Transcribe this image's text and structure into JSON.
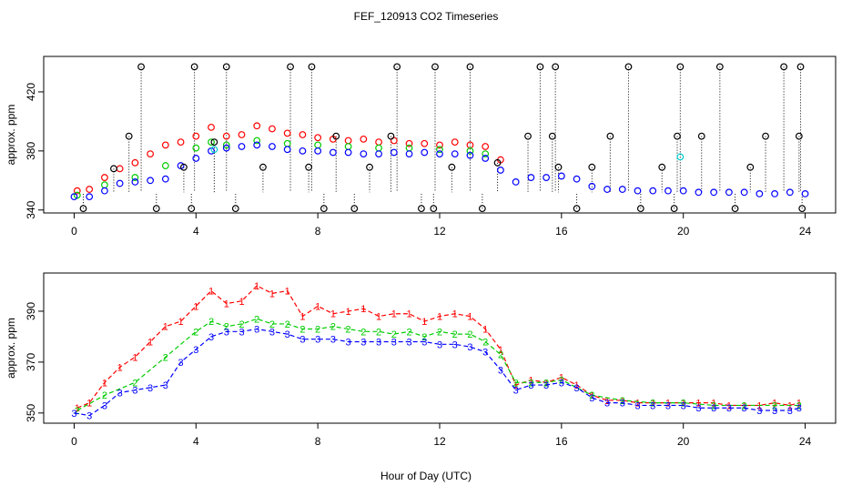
{
  "figure": {
    "title": "FEF_120913  CO2 Timeseries",
    "xlabel": "Hour of Day (UTC)"
  },
  "chart_data": [
    {
      "type": "scatter",
      "panel": "top",
      "title": "",
      "xlabel": "",
      "ylabel": "approx. ppm",
      "xlim": [
        -1,
        25
      ],
      "ylim": [
        338,
        444
      ],
      "xticks": [
        "0",
        "4",
        "8",
        "12",
        "16",
        "20",
        "24"
      ],
      "xtick_values": [
        0,
        4,
        8,
        12,
        16,
        20,
        24
      ],
      "yticks": [
        "340",
        "380",
        "420"
      ],
      "ytick_values": [
        340,
        380,
        420
      ],
      "marker": "circle",
      "grid": false,
      "legend": "none",
      "colors": {
        "red": "#ff0000",
        "green": "#00cc00",
        "blue": "#0000ff",
        "black": "#000000",
        "cyan": "#00cccc"
      },
      "series_red_x": [
        0.1,
        0.5,
        1.0,
        1.5,
        2.0,
        2.5,
        3.0,
        3.5,
        4.0,
        4.5,
        5.0,
        5.5,
        6.0,
        6.5,
        7.0,
        7.5,
        8.0,
        8.5,
        9.0,
        9.5,
        10.0,
        10.5,
        11.0,
        11.5,
        12.0,
        12.5,
        13.0,
        13.5,
        14.0
      ],
      "series_red_y": [
        353,
        354,
        362,
        368,
        372,
        378,
        384,
        386,
        390,
        396,
        390,
        391,
        397,
        395,
        392,
        391,
        389,
        388,
        387,
        388,
        386,
        387,
        385,
        385,
        384,
        386,
        384,
        383,
        374
      ],
      "series_green_x": [
        0.1,
        1.0,
        2.0,
        3.0,
        4.0,
        4.5,
        5.0,
        6.0,
        7.0,
        8.0,
        9.0,
        10.0,
        11.0,
        12.0,
        13.0,
        13.5
      ],
      "series_green_y": [
        350,
        357,
        362,
        370,
        382,
        386,
        384,
        387,
        385,
        384,
        383,
        382,
        382,
        381,
        380,
        378
      ],
      "series_blue_x": [
        0.0,
        0.5,
        1.0,
        1.5,
        2.0,
        2.5,
        3.0,
        3.5,
        4.0,
        4.5,
        5.0,
        5.5,
        6.0,
        6.5,
        7.0,
        7.5,
        8.0,
        8.5,
        9.0,
        9.5,
        10.0,
        10.5,
        11.0,
        11.5,
        12.0,
        12.5,
        13.0,
        13.5,
        14.0,
        14.5,
        15.0,
        15.5,
        16.0,
        16.5,
        17.0,
        17.5,
        18.0,
        18.5,
        19.0,
        19.5,
        20.0,
        20.5,
        21.0,
        21.5,
        22.0,
        22.5,
        23.0,
        23.5,
        24.0
      ],
      "series_blue_y": [
        349,
        349,
        353,
        358,
        359,
        360,
        361,
        370,
        375,
        380,
        382,
        383,
        384,
        383,
        381,
        380,
        380,
        379,
        379,
        378,
        378,
        379,
        378,
        379,
        378,
        378,
        377,
        375,
        367,
        359,
        362,
        362,
        363,
        361,
        356,
        354,
        354,
        353,
        353,
        353,
        353,
        352,
        352,
        352,
        352,
        351,
        351,
        352,
        351
      ],
      "series_black_x": [
        0.3,
        1.3,
        1.8,
        2.2,
        2.7,
        3.6,
        3.85,
        3.95,
        4.6,
        5.0,
        5.3,
        6.2,
        7.1,
        7.7,
        7.8,
        8.2,
        8.6,
        9.2,
        9.7,
        10.4,
        10.6,
        11.4,
        11.8,
        11.85,
        12.4,
        13.0,
        13.4,
        13.9,
        14.9,
        15.3,
        15.7,
        15.8,
        15.9,
        16.5,
        17.0,
        17.6,
        18.2,
        18.6,
        19.3,
        19.7,
        19.8,
        19.9,
        20.6,
        21.2,
        21.7,
        22.2,
        22.7,
        23.3,
        23.8,
        23.85,
        23.9
      ],
      "series_black_y": [
        341,
        368,
        390,
        437,
        341,
        369,
        341,
        437,
        386,
        437,
        341,
        369,
        437,
        369,
        437,
        341,
        390,
        341,
        369,
        390,
        437,
        341,
        341,
        437,
        369,
        437,
        341,
        372,
        390,
        437,
        390,
        437,
        369,
        341,
        369,
        390,
        437,
        341,
        369,
        341,
        390,
        437,
        390,
        437,
        341,
        369,
        390,
        437,
        390,
        437,
        341
      ],
      "series_cyan_x": [
        4.6,
        19.9
      ],
      "series_cyan_y": [
        381,
        376
      ]
    },
    {
      "type": "line",
      "panel": "bottom",
      "title": "",
      "xlabel": "Hour of Day (UTC)",
      "ylabel": "approx. ppm",
      "xlim": [
        -1,
        25
      ],
      "ylim": [
        346,
        405
      ],
      "xticks": [
        "0",
        "4",
        "8",
        "12",
        "16",
        "20",
        "24"
      ],
      "xtick_values": [
        0,
        4,
        8,
        12,
        16,
        20,
        24
      ],
      "yticks": [
        "350",
        "370",
        "390"
      ],
      "ytick_values": [
        350,
        370,
        390
      ],
      "grid": false,
      "legend": "none",
      "line_style": "dashed with numeric markers",
      "series": [
        {
          "marker": "1",
          "color": "#ff0000",
          "x": [
            0.1,
            0.5,
            1.0,
            1.5,
            2.0,
            2.5,
            3.0,
            3.5,
            4.0,
            4.5,
            5.0,
            5.5,
            6.0,
            6.5,
            7.0,
            7.5,
            8.0,
            8.5,
            9.0,
            9.5,
            10.0,
            10.5,
            11.0,
            11.5,
            12.0,
            12.5,
            13.0,
            13.5,
            14.0,
            14.5,
            15.0,
            15.5,
            16.0,
            16.5,
            17.0,
            17.5,
            18.0,
            18.5,
            19.0,
            19.5,
            20.0,
            20.5,
            21.0,
            21.5,
            22.0,
            22.5,
            23.0,
            23.5,
            23.8
          ],
          "y": [
            352,
            354,
            362,
            368,
            372,
            378,
            384,
            386,
            392,
            398,
            393,
            394,
            400,
            397,
            398,
            388,
            392,
            389,
            390,
            391,
            388,
            389,
            389,
            386,
            388,
            389,
            388,
            383,
            375,
            361,
            363,
            362,
            364,
            361,
            357,
            355,
            355,
            354,
            354,
            354,
            354,
            354,
            354,
            353,
            353,
            353,
            354,
            353,
            354
          ]
        },
        {
          "marker": "2",
          "color": "#00cc00",
          "x": [
            0.1,
            1.0,
            2.0,
            3.0,
            4.0,
            4.5,
            5.0,
            5.5,
            6.0,
            6.5,
            7.0,
            7.5,
            8.0,
            8.5,
            9.0,
            9.5,
            10.0,
            10.5,
            11.0,
            11.5,
            12.0,
            12.5,
            13.0,
            13.5,
            14.0,
            14.5,
            15.0,
            15.5,
            16.0,
            17.0,
            18.0,
            19.0,
            20.0,
            21.0,
            22.0,
            23.0,
            23.8
          ],
          "y": [
            351,
            357,
            362,
            372,
            382,
            386,
            384,
            385,
            387,
            385,
            385,
            383,
            383,
            384,
            383,
            382,
            382,
            381,
            382,
            380,
            382,
            381,
            381,
            378,
            373,
            362,
            362,
            362,
            363,
            357,
            355,
            354,
            354,
            353,
            353,
            353,
            353
          ]
        },
        {
          "marker": "3",
          "color": "#0000ff",
          "x": [
            0.0,
            0.5,
            1.0,
            1.5,
            2.0,
            2.5,
            3.0,
            3.5,
            4.0,
            4.5,
            5.0,
            5.5,
            6.0,
            6.5,
            7.0,
            7.5,
            8.0,
            8.5,
            9.0,
            9.5,
            10.0,
            10.5,
            11.0,
            11.5,
            12.0,
            12.5,
            13.0,
            13.5,
            14.0,
            14.5,
            15.0,
            15.5,
            16.0,
            16.5,
            17.0,
            17.5,
            18.0,
            18.5,
            19.0,
            19.5,
            20.0,
            20.5,
            21.0,
            21.5,
            22.0,
            22.5,
            23.0,
            23.5,
            23.8
          ],
          "y": [
            350,
            349,
            353,
            358,
            359,
            360,
            361,
            370,
            375,
            380,
            382,
            382,
            383,
            382,
            381,
            379,
            379,
            379,
            378,
            378,
            378,
            378,
            378,
            378,
            377,
            377,
            376,
            374,
            367,
            359,
            361,
            361,
            362,
            360,
            356,
            354,
            354,
            353,
            353,
            353,
            353,
            352,
            352,
            352,
            352,
            351,
            351,
            351,
            352
          ]
        }
      ]
    }
  ]
}
